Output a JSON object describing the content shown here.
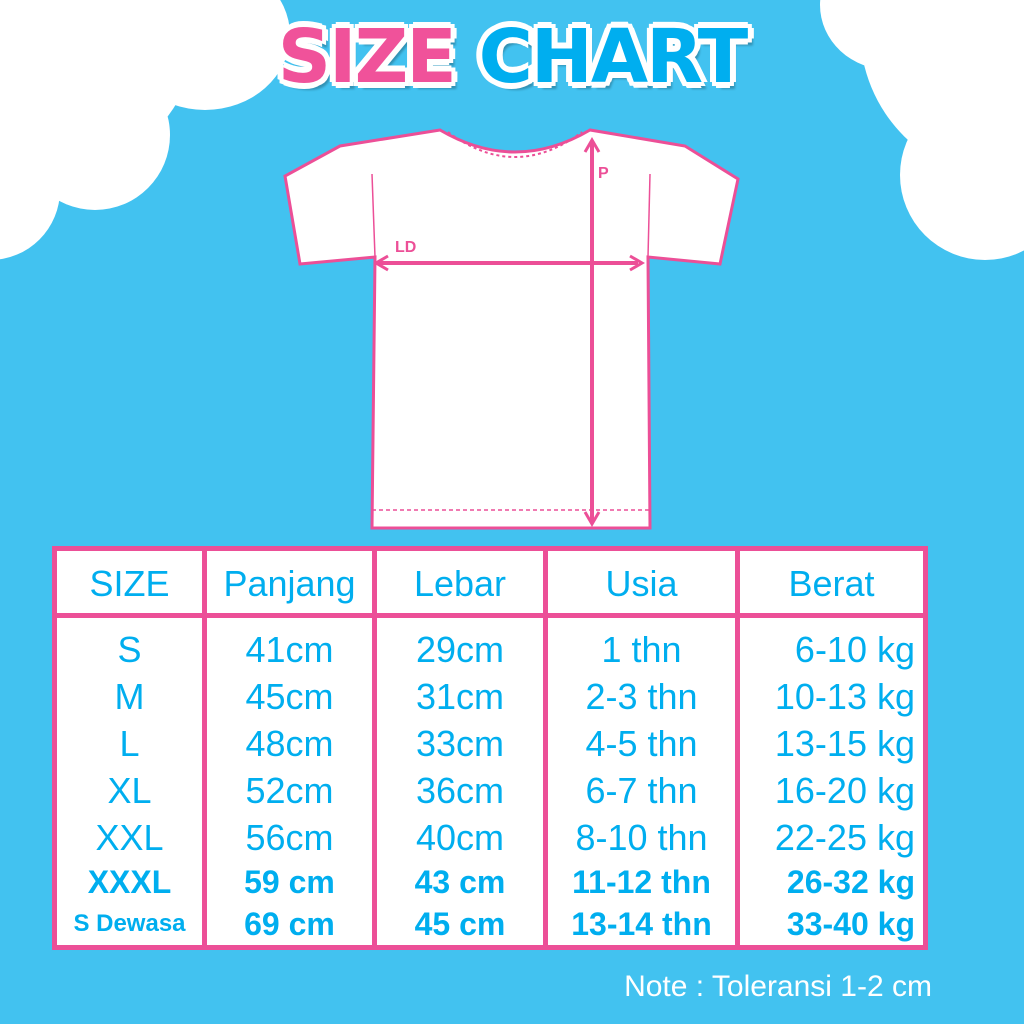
{
  "title": {
    "word1": "SIZE",
    "word2": "CHART"
  },
  "diagram": {
    "length_label": "P",
    "width_label": "LD"
  },
  "table": {
    "headers": [
      "SIZE",
      "Panjang",
      "Lebar",
      "Usia",
      "Berat"
    ],
    "rows": [
      [
        "S",
        "41cm",
        "29cm",
        "1 thn",
        "6-10 kg"
      ],
      [
        "M",
        "45cm",
        "31cm",
        "2-3 thn",
        "10-13 kg"
      ],
      [
        "L",
        "48cm",
        "33cm",
        "4-5 thn",
        "13-15 kg"
      ],
      [
        "XL",
        "52cm",
        "36cm",
        "6-7 thn",
        "16-20 kg"
      ],
      [
        "XXL",
        "56cm",
        "40cm",
        "8-10 thn",
        "22-25 kg"
      ],
      [
        "XXXL",
        "59 cm",
        "43 cm",
        "11-12 thn",
        "26-32 kg"
      ],
      [
        "S Dewasa",
        "69 cm",
        "45 cm",
        "13-14 thn",
        "33-40 kg"
      ]
    ]
  },
  "note": "Note : Toleransi 1-2 cm",
  "colors": {
    "background": "#42C2F0",
    "pink": "#EC4F97",
    "blue": "#00AEEF"
  }
}
